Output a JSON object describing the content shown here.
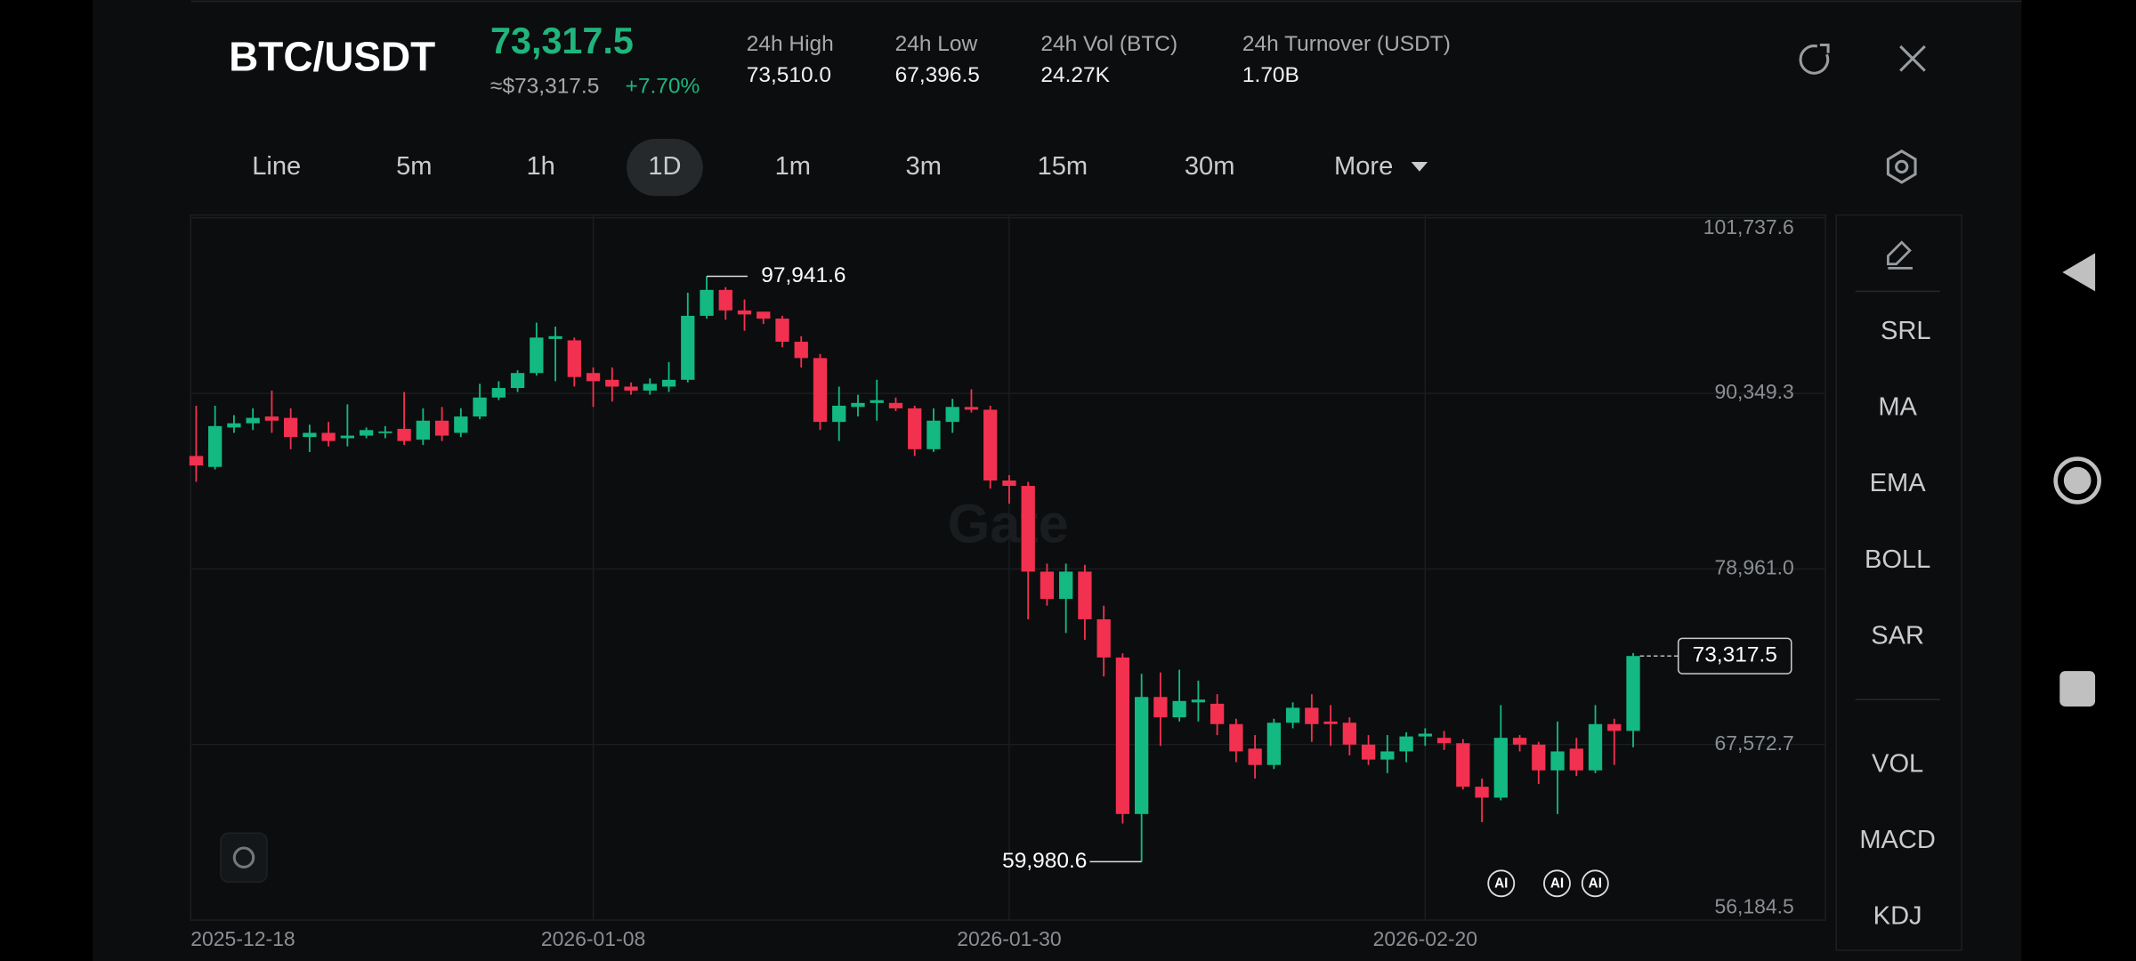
{
  "header": {
    "pair": "BTC/USDT",
    "price": "73,317.5",
    "approx": "≈$73,317.5",
    "change": "+7.70%",
    "stats": [
      {
        "label": "24h High",
        "value": "73,510.0"
      },
      {
        "label": "24h Low",
        "value": "67,396.5"
      },
      {
        "label": "24h Vol (BTC)",
        "value": "24.27K"
      },
      {
        "label": "24h Turnover (USDT)",
        "value": "1.70B"
      }
    ]
  },
  "tabs": [
    "Line",
    "5m",
    "1h",
    "1D",
    "1m",
    "3m",
    "15m",
    "30m",
    "More"
  ],
  "indicators": [
    "SRL",
    "MA",
    "EMA",
    "BOLL",
    "SAR"
  ],
  "sub_indicators": [
    "VOL",
    "MACD",
    "KDJ"
  ],
  "watermark": "Gate",
  "ai_badges": [
    "AI",
    "AI",
    "AI"
  ],
  "chart_data": {
    "type": "candlestick",
    "up_color": "#13b981",
    "down_color": "#f2304f",
    "grid": true,
    "categories": [
      "2025-12-18",
      null,
      null,
      null,
      null,
      null,
      null,
      null,
      null,
      null,
      null,
      null,
      null,
      null,
      null,
      null,
      null,
      null,
      null,
      null,
      null,
      "2026-01-08",
      null,
      null,
      null,
      null,
      null,
      null,
      null,
      null,
      null,
      null,
      null,
      null,
      null,
      null,
      null,
      null,
      null,
      null,
      null,
      null,
      null,
      "2026-01-30",
      null,
      null,
      null,
      null,
      null,
      null,
      null,
      null,
      null,
      null,
      null,
      null,
      null,
      null,
      null,
      null,
      null,
      null,
      null,
      null,
      null,
      "2026-02-20",
      null,
      null,
      null,
      null,
      null,
      null,
      null,
      null,
      null,
      null,
      null
    ],
    "open": [
      86290,
      85580,
      88140,
      88410,
      88850,
      88760,
      87520,
      87790,
      87440,
      87610,
      87790,
      88050,
      87350,
      88580,
      87790,
      88850,
      90080,
      90700,
      91670,
      93880,
      93790,
      91670,
      91230,
      90790,
      90530,
      90790,
      91230,
      95380,
      97060,
      95730,
      95650,
      95200,
      93700,
      92640,
      88500,
      89470,
      89730,
      89730,
      89380,
      86730,
      88500,
      89470,
      89290,
      84700,
      84350,
      78790,
      77020,
      78790,
      75700,
      73220,
      63070,
      70660,
      69340,
      70310,
      70220,
      68900,
      67310,
      66250,
      68990,
      69960,
      69070,
      68990,
      67570,
      66600,
      67130,
      68100,
      68010,
      67660,
      64840,
      64130,
      68010,
      67570,
      65900,
      67310,
      65900,
      68900,
      68460
    ],
    "high": [
      89550,
      89550,
      88940,
      89380,
      90530,
      89380,
      88320,
      88500,
      89640,
      88140,
      88230,
      90440,
      89380,
      89470,
      89380,
      90970,
      91140,
      91850,
      94940,
      94680,
      93970,
      92030,
      92030,
      91060,
      91320,
      92380,
      96880,
      97941.6,
      97240,
      96440,
      95650,
      95380,
      94060,
      92910,
      90790,
      90260,
      91230,
      90080,
      89550,
      89380,
      90000,
      90610,
      89550,
      85050,
      84610,
      79310,
      79310,
      79230,
      76580,
      73490,
      72160,
      72250,
      72430,
      71720,
      70840,
      69250,
      68190,
      69250,
      70310,
      70840,
      70130,
      69340,
      68190,
      68190,
      68370,
      68630,
      68460,
      67930,
      65370,
      70130,
      68190,
      67750,
      69070,
      68010,
      70130,
      69250,
      73510
    ],
    "low": [
      84610,
      85410,
      87790,
      87970,
      87790,
      86730,
      86550,
      86910,
      86910,
      87440,
      87440,
      87000,
      87000,
      87260,
      87520,
      88670,
      89910,
      90440,
      91500,
      91140,
      90790,
      89470,
      89820,
      90260,
      90260,
      90440,
      91060,
      95200,
      95120,
      94410,
      94850,
      93350,
      92030,
      87970,
      87260,
      88850,
      88580,
      89200,
      86290,
      86550,
      87790,
      89110,
      84170,
      83200,
      75700,
      76580,
      74810,
      74370,
      71990,
      62450,
      59980.6,
      67490,
      69070,
      69070,
      68190,
      66430,
      65370,
      65990,
      68630,
      67750,
      67490,
      66870,
      66250,
      65720,
      66430,
      67490,
      67220,
      64660,
      62540,
      63950,
      67130,
      65010,
      63070,
      65540,
      65720,
      66250,
      67396.5
    ],
    "close": [
      85670,
      88230,
      88410,
      88760,
      88580,
      87520,
      87790,
      87260,
      87610,
      87970,
      87880,
      87260,
      88580,
      87610,
      88850,
      90080,
      90700,
      91670,
      93970,
      94060,
      91410,
      91140,
      90790,
      90530,
      90970,
      91230,
      95380,
      97060,
      95730,
      95470,
      95200,
      93700,
      92640,
      88500,
      89550,
      89730,
      89910,
      89380,
      86730,
      88580,
      89470,
      89290,
      84700,
      84350,
      78790,
      77020,
      78790,
      75700,
      73220,
      63070,
      70660,
      69340,
      70400,
      70490,
      68900,
      67130,
      66250,
      68990,
      69960,
      68900,
      68900,
      67570,
      66600,
      67130,
      68100,
      68280,
      67660,
      64840,
      64130,
      68010,
      67570,
      65900,
      67130,
      65900,
      68900,
      68460,
      73317.5
    ],
    "ylim": [
      56184.5,
      101737.6
    ],
    "yticks": [
      {
        "value": 101737.6,
        "label": "101,737.6"
      },
      {
        "value": 90349.3,
        "label": "90,349.3"
      },
      {
        "value": 78961.0,
        "label": "78,961.0"
      },
      {
        "value": 67572.7,
        "label": "67,572.7"
      },
      {
        "value": 56184.5,
        "label": "56,184.5"
      }
    ],
    "high_marker": {
      "value": 97941.6,
      "label": "97,941.6"
    },
    "low_marker": {
      "value": 59980.6,
      "label": "59,980.6"
    },
    "last_price": {
      "value": 73317.5,
      "label": "73,317.5"
    }
  }
}
